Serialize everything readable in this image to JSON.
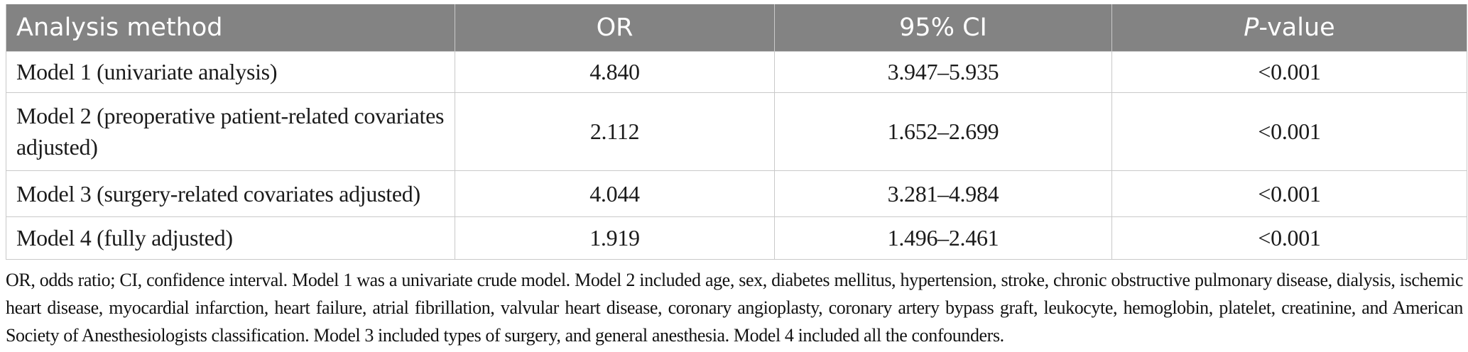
{
  "colors": {
    "header_bg": "#838383",
    "header_text": "#ffffff",
    "border": "#c9c9c9",
    "body_text": "#1b1b1b",
    "footnote_text": "#121212"
  },
  "table": {
    "header": {
      "analysis_method": "Analysis method",
      "or": "OR",
      "ci": "95% CI",
      "p_value_italic": "P",
      "p_value_rest": "-value"
    },
    "rows": [
      {
        "method": "Model 1 (univariate analysis)",
        "or": "4.840",
        "ci": "3.947–5.935",
        "p": "<0.001"
      },
      {
        "method": "Model 2 (preoperative patient-related covariates adjusted)",
        "or": "2.112",
        "ci": "1.652–2.699",
        "p": "<0.001"
      },
      {
        "method": "Model 3 (surgery-related covariates adjusted)",
        "or": "4.044",
        "ci": "3.281–4.984",
        "p": "<0.001"
      },
      {
        "method": "Model 4 (fully adjusted)",
        "or": "1.919",
        "ci": "1.496–2.461",
        "p": "<0.001"
      }
    ],
    "footnote": "OR, odds ratio; CI, confidence interval. Model 1 was a univariate crude model. Model 2 included age, sex, diabetes mellitus, hypertension, stroke, chronic obstructive pulmonary disease, dialysis, ischemic heart disease, myocardial infarction, heart failure, atrial fibrillation, valvular heart disease, coronary angioplasty, coronary artery bypass graft, leukocyte, hemoglobin, platelet, creatinine, and American Society of Anesthesiologists classification. Model 3 included types of surgery, and general anesthesia. Model 4 included all the confounders."
  }
}
